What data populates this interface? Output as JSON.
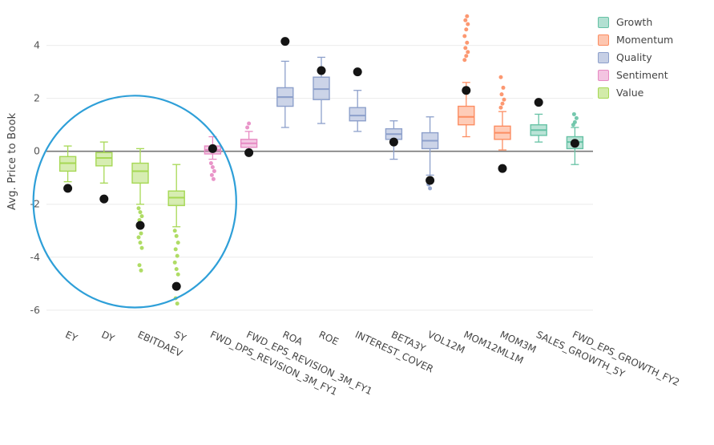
{
  "chart_data": {
    "type": "box",
    "title": "",
    "ylabel": "Avg. Price to Book",
    "xlabel": "",
    "ylim": [
      -6.55,
      5.35
    ],
    "yticks": [
      -6,
      -4,
      -2,
      0,
      2,
      4
    ],
    "zero_line": 0,
    "grid": true,
    "legend_position": "top-right",
    "groups": {
      "Growth": "#66c2a5",
      "Momentum": "#fc8d62",
      "Quality": "#8da0cb",
      "Sentiment": "#e78ac3",
      "Value": "#a6d854"
    },
    "legend": [
      "Growth",
      "Momentum",
      "Quality",
      "Sentiment",
      "Value"
    ],
    "series": [
      {
        "label": "EY",
        "group": "Value",
        "low": -1.15,
        "q1": -0.75,
        "median": -0.45,
        "q3": -0.2,
        "high": 0.2,
        "marker": -1.4,
        "outliers": []
      },
      {
        "label": "DY",
        "group": "Value",
        "low": -1.2,
        "q1": -0.55,
        "median": -0.25,
        "q3": -0.05,
        "high": 0.35,
        "marker": -1.8,
        "outliers": []
      },
      {
        "label": "EBITDAEV",
        "group": "Value",
        "low": -2.0,
        "q1": -1.2,
        "median": -0.75,
        "q3": -0.45,
        "high": 0.1,
        "marker": -2.8,
        "outliers": [
          -2.15,
          -2.3,
          -2.45,
          -2.6,
          -3.1,
          -3.25,
          -3.45,
          -3.65,
          -4.3,
          -4.5
        ]
      },
      {
        "label": "SY",
        "group": "Value",
        "low": -2.85,
        "q1": -2.05,
        "median": -1.75,
        "q3": -1.5,
        "high": -0.5,
        "marker": -5.1,
        "outliers": [
          -3.0,
          -3.2,
          -3.45,
          -3.7,
          -3.95,
          -4.2,
          -4.45,
          -4.65,
          -5.55,
          -5.75
        ]
      },
      {
        "label": "FWD_DPS_REVISION_3M_FY1",
        "group": "Sentiment",
        "low": -0.3,
        "q1": -0.1,
        "median": 0.05,
        "q3": 0.2,
        "high": 0.55,
        "marker": 0.1,
        "outliers": [
          -0.45,
          -0.6,
          -0.75,
          -0.9,
          -1.05
        ]
      },
      {
        "label": "FWD_EPS_REVISION_3M_FY1",
        "group": "Sentiment",
        "low": 0.0,
        "q1": 0.15,
        "median": 0.3,
        "q3": 0.45,
        "high": 0.75,
        "marker": -0.05,
        "outliers": [
          0.9,
          1.05
        ]
      },
      {
        "label": "ROA",
        "group": "Quality",
        "low": 0.9,
        "q1": 1.7,
        "median": 2.05,
        "q3": 2.4,
        "high": 3.4,
        "marker": 4.15,
        "outliers": []
      },
      {
        "label": "ROE",
        "group": "Quality",
        "low": 1.05,
        "q1": 1.95,
        "median": 2.35,
        "q3": 2.8,
        "high": 3.55,
        "marker": 3.05,
        "outliers": []
      },
      {
        "label": "INTEREST_COVER",
        "group": "Quality",
        "low": 0.75,
        "q1": 1.15,
        "median": 1.35,
        "q3": 1.65,
        "high": 2.3,
        "marker": 3.0,
        "outliers": []
      },
      {
        "label": "BETA3Y",
        "group": "Quality",
        "low": -0.3,
        "q1": 0.45,
        "median": 0.65,
        "q3": 0.85,
        "high": 1.15,
        "marker": 0.35,
        "outliers": []
      },
      {
        "label": "VOL12M",
        "group": "Quality",
        "low": -0.9,
        "q1": 0.1,
        "median": 0.4,
        "q3": 0.7,
        "high": 1.3,
        "marker": -1.1,
        "outliers": [
          -1.25,
          -1.4
        ]
      },
      {
        "label": "MOM12ML1M",
        "group": "Momentum",
        "low": 0.55,
        "q1": 1.0,
        "median": 1.3,
        "q3": 1.7,
        "high": 2.6,
        "marker": 2.3,
        "outliers": [
          3.45,
          3.6,
          3.75,
          3.9,
          4.1,
          4.35,
          4.6,
          4.8,
          4.95,
          5.1
        ]
      },
      {
        "label": "MOM3M",
        "group": "Momentum",
        "low": 0.05,
        "q1": 0.45,
        "median": 0.7,
        "q3": 0.95,
        "high": 1.5,
        "marker": -0.65,
        "outliers": [
          1.65,
          1.8,
          1.95,
          2.15,
          2.4,
          2.8
        ]
      },
      {
        "label": "SALES_GROWTH_5Y",
        "group": "Growth",
        "low": 0.35,
        "q1": 0.6,
        "median": 0.8,
        "q3": 1.0,
        "high": 1.4,
        "marker": 1.85,
        "outliers": []
      },
      {
        "label": "FWD_EPS_GROWTH_FY2",
        "group": "Growth",
        "low": -0.5,
        "q1": 0.1,
        "median": 0.35,
        "q3": 0.55,
        "high": 0.9,
        "marker": 0.3,
        "outliers": [
          1.0,
          1.1,
          1.25,
          1.4
        ]
      }
    ],
    "annotation": {
      "shape": "ellipse",
      "center_category_index": 1.85,
      "center_value": -1.9,
      "radius_categories": 2.8,
      "radius_values": 4.0,
      "color": "#2e9fd8",
      "stroke_width": 2.2
    }
  }
}
